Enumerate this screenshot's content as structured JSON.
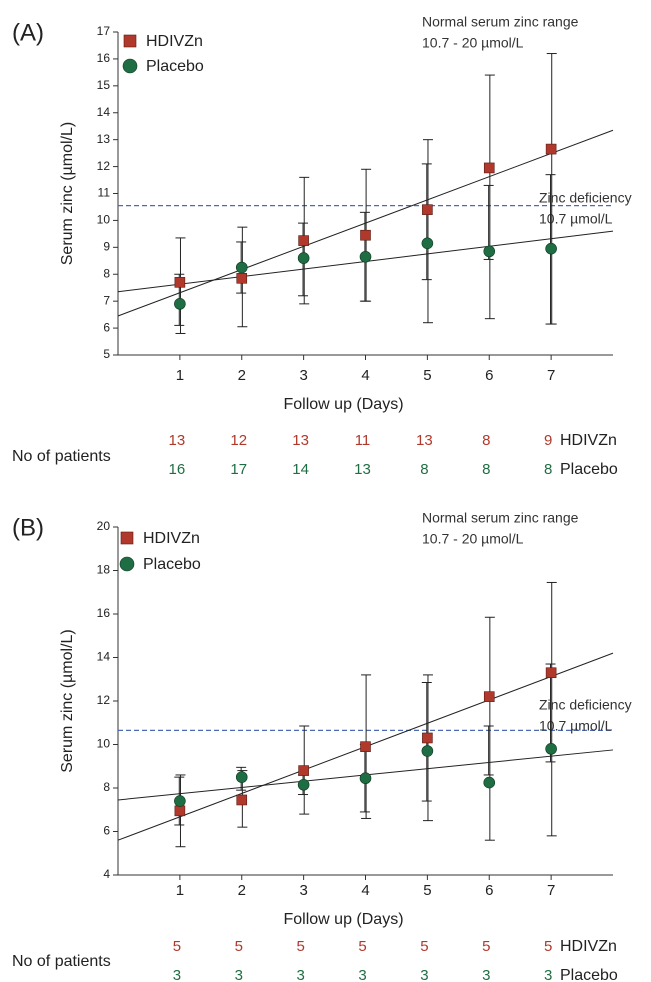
{
  "chart_data": [
    {
      "panel": "(A)",
      "type": "scatter",
      "xlabel": "Follow up (Days)",
      "ylabel": "Serum zinc (µmol/L)",
      "x": [
        1,
        2,
        3,
        4,
        5,
        6,
        7
      ],
      "xlim": [
        0,
        8
      ],
      "ylim": [
        5,
        17
      ],
      "yticks": [
        5,
        6,
        7,
        8,
        9,
        10,
        11,
        12,
        13,
        14,
        15,
        16,
        17
      ],
      "legend_placement": "top-left",
      "annotations": {
        "normal_range_title": "Normal serum zinc range",
        "normal_range_value": "10.7 - 20 µmol/L",
        "deficiency_title": "Zinc deficiency",
        "deficiency_value": "10.7 µmol/L"
      },
      "reference_line": {
        "y": 10.55,
        "style": "dashed",
        "color": "#4d6bb3"
      },
      "series": [
        {
          "name": "HDIVZn",
          "marker": "square",
          "color": "#b0392b",
          "values": [
            7.7,
            7.85,
            9.25,
            9.45,
            10.4,
            11.95,
            12.65
          ],
          "err_low": [
            5.8,
            6.05,
            6.9,
            7.0,
            6.2,
            6.35,
            6.15
          ],
          "err_high": [
            9.35,
            9.75,
            11.6,
            11.9,
            13.0,
            15.4,
            16.2
          ],
          "trend": {
            "x0": 0,
            "y0": 6.45,
            "x1": 8,
            "y1": 13.35
          }
        },
        {
          "name": "Placebo",
          "marker": "circle",
          "color": "#1f6e43",
          "values": [
            6.9,
            8.25,
            8.6,
            8.65,
            9.15,
            8.85,
            8.95
          ],
          "err_low": [
            6.1,
            7.3,
            7.2,
            7.0,
            7.8,
            8.55,
            6.15
          ],
          "err_high": [
            8.0,
            9.2,
            9.9,
            10.3,
            12.1,
            11.3,
            11.7
          ],
          "trend": {
            "x0": 0,
            "y0": 7.35,
            "x1": 8,
            "y1": 9.6
          }
        }
      ],
      "patients": {
        "label": "No of patients",
        "rows": [
          {
            "name": "HDIVZn",
            "color": "#b0392b",
            "counts": [
              "13",
              "12",
              "13",
              "11",
              "13",
              "8",
              "9"
            ]
          },
          {
            "name": "Placebo",
            "color": "#1f6e43",
            "counts": [
              "16",
              "17",
              "14",
              "13",
              "8",
              "8",
              "8"
            ]
          }
        ]
      }
    },
    {
      "panel": "(B)",
      "type": "scatter",
      "xlabel": "Follow up (Days)",
      "ylabel": "Serum zinc (µmol/L)",
      "x": [
        1,
        2,
        3,
        4,
        5,
        6,
        7
      ],
      "xlim": [
        0,
        8
      ],
      "ylim": [
        4,
        20
      ],
      "yticks": [
        4,
        6,
        8,
        10,
        12,
        14,
        16,
        18,
        20
      ],
      "legend_placement": "top-left",
      "annotations": {
        "normal_range_title": "Normal serum zinc range",
        "normal_range_value": "10.7 - 20 µmol/L",
        "deficiency_title": "Zinc deficiency",
        "deficiency_value": "10.7 µmol/L"
      },
      "reference_line": {
        "y": 10.65,
        "style": "dashed",
        "color": "#4d6bb3"
      },
      "series": [
        {
          "name": "HDIVZn",
          "marker": "square",
          "color": "#b0392b",
          "values": [
            6.95,
            7.45,
            8.8,
            9.9,
            10.3,
            12.2,
            13.3
          ],
          "err_low": [
            5.3,
            6.2,
            6.8,
            6.6,
            6.5,
            5.6,
            5.8
          ],
          "err_high": [
            8.6,
            8.8,
            10.85,
            13.2,
            13.2,
            15.85,
            17.45
          ],
          "trend": {
            "x0": 0,
            "y0": 5.6,
            "x1": 8,
            "y1": 14.2
          }
        },
        {
          "name": "Placebo",
          "marker": "circle",
          "color": "#1f6e43",
          "values": [
            7.4,
            8.5,
            8.15,
            8.45,
            9.7,
            8.25,
            9.8
          ],
          "err_low": [
            6.3,
            7.9,
            7.7,
            6.9,
            7.4,
            8.6,
            9.2
          ],
          "err_high": [
            8.5,
            8.95,
            8.6,
            10.0,
            12.85,
            10.85,
            13.7
          ],
          "trend": {
            "x0": 0,
            "y0": 7.45,
            "x1": 8,
            "y1": 9.75
          }
        }
      ],
      "patients": {
        "label": "No of patients",
        "rows": [
          {
            "name": "HDIVZn",
            "color": "#b0392b",
            "counts": [
              "5",
              "5",
              "5",
              "5",
              "5",
              "5",
              "5"
            ]
          },
          {
            "name": "Placebo",
            "color": "#1f6e43",
            "counts": [
              "3",
              "3",
              "3",
              "3",
              "3",
              "3",
              "3"
            ]
          }
        ]
      }
    }
  ]
}
